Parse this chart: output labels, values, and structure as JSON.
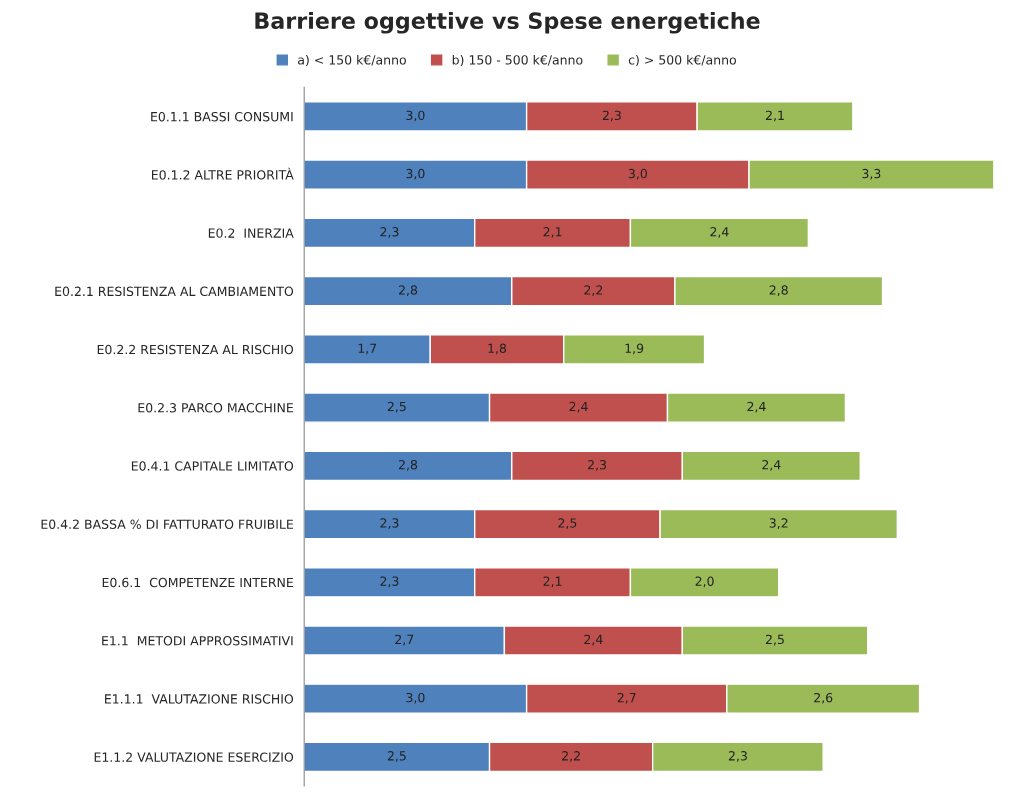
{
  "chart_data": {
    "type": "bar",
    "orientation": "horizontal",
    "stacked": true,
    "title": "Barriere oggettive vs Spese energetiche",
    "categories": [
      "E0.1.1 BASSI CONSUMI",
      "E0.1.2 ALTRE PRIORITÀ",
      "E0.2  INERZIA",
      "E0.2.1 RESISTENZA AL CAMBIAMENTO",
      "E0.2.2 RESISTENZA AL RISCHIO",
      "E0.2.3 PARCO MACCHINE",
      "E0.4.1 CAPITALE LIMITATO",
      "E0.4.2 BASSA % DI FATTURATO FRUIBILE",
      "E0.6.1  COMPETENZE INTERNE",
      "E1.1  METODI APPROSSIMATIVI",
      "E1.1.1  VALUTAZIONE RISCHIO",
      "E1.1.2 VALUTAZIONE ESERCIZIO"
    ],
    "series": [
      {
        "name": "a) < 150 k€/anno",
        "color": "#4f81bd",
        "values": [
          3.0,
          3.0,
          2.3,
          2.8,
          1.7,
          2.5,
          2.8,
          2.3,
          2.3,
          2.7,
          3.0,
          2.5
        ],
        "value_labels": [
          "3,0",
          "3,0",
          "2,3",
          "2,8",
          "1,7",
          "2,5",
          "2,8",
          "2,3",
          "2,3",
          "2,7",
          "3,0",
          "2,5"
        ]
      },
      {
        "name": "b) 150 - 500 k€/anno",
        "color": "#c0504d",
        "values": [
          2.3,
          3.0,
          2.1,
          2.2,
          1.8,
          2.4,
          2.3,
          2.5,
          2.1,
          2.4,
          2.7,
          2.2
        ],
        "value_labels": [
          "2,3",
          "3,0",
          "2,1",
          "2,2",
          "1,8",
          "2,4",
          "2,3",
          "2,5",
          "2,1",
          "2,4",
          "2,7",
          "2,2"
        ]
      },
      {
        "name": "c) > 500 k€/anno",
        "color": "#9bbb59",
        "values": [
          2.1,
          3.3,
          2.4,
          2.8,
          1.9,
          2.4,
          2.4,
          3.2,
          2.0,
          2.5,
          2.6,
          2.3
        ],
        "value_labels": [
          "2,1",
          "3,3",
          "2,4",
          "2,8",
          "1,9",
          "2,4",
          "2,4",
          "3,2",
          "2,0",
          "2,5",
          "2,6",
          "2,3"
        ]
      }
    ],
    "legend": "top",
    "grid": false
  }
}
